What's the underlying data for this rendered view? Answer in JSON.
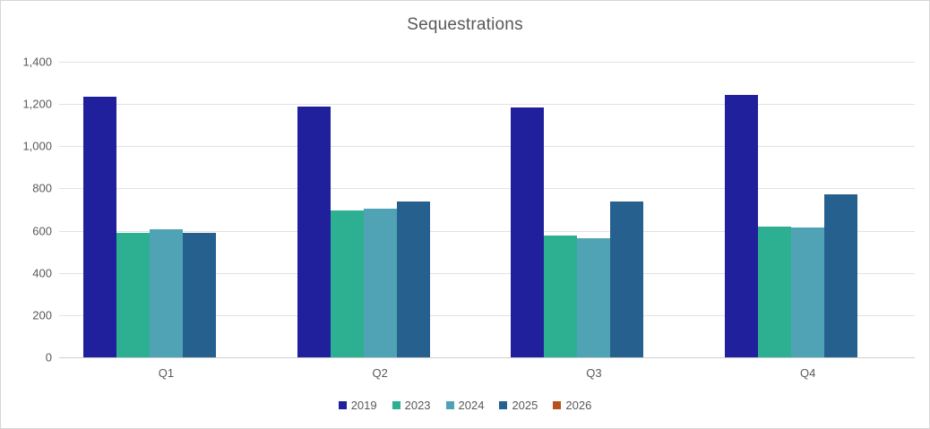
{
  "chart_data": {
    "type": "bar",
    "title": "Sequestrations",
    "categories": [
      "Q1",
      "Q2",
      "Q3",
      "Q4"
    ],
    "series": [
      {
        "name": "2019",
        "color": "#21209C",
        "values": [
          1235,
          1190,
          1185,
          1245
        ]
      },
      {
        "name": "2023",
        "color": "#2DB092",
        "values": [
          590,
          695,
          578,
          618
        ]
      },
      {
        "name": "2024",
        "color": "#4FA3B5",
        "values": [
          605,
          703,
          563,
          615
        ]
      },
      {
        "name": "2025",
        "color": "#26608F",
        "values": [
          590,
          737,
          737,
          772
        ]
      },
      {
        "name": "2026",
        "color": "#B4531B",
        "values": [
          0,
          0,
          0,
          0
        ]
      }
    ],
    "xlabel": "",
    "ylabel": "",
    "ylim": [
      0,
      1400
    ],
    "ytick_step": 200,
    "grid": "horizontal",
    "legend_position": "bottom"
  }
}
